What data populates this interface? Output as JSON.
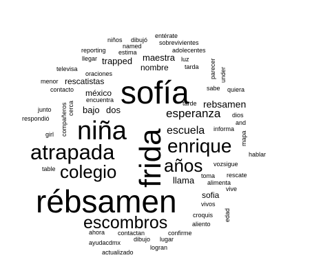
{
  "word_cloud": {
    "words": [
      {
        "text": "sofía",
        "weight": 48
      },
      {
        "text": "frida",
        "weight": 44
      },
      {
        "text": "rébsamen",
        "weight": 46
      },
      {
        "text": "niña",
        "weight": 38
      },
      {
        "text": "atrapada",
        "weight": 31
      },
      {
        "text": "enrique",
        "weight": 28
      },
      {
        "text": "colegio",
        "weight": 26
      },
      {
        "text": "años",
        "weight": 26
      },
      {
        "text": "escombros",
        "weight": 25
      },
      {
        "text": "esperanza",
        "weight": 17
      },
      {
        "text": "escuela",
        "weight": 16
      },
      {
        "text": "rebsamen",
        "weight": 14
      },
      {
        "text": "maestra",
        "weight": 13
      },
      {
        "text": "trapped",
        "weight": 13
      },
      {
        "text": "nombre",
        "weight": 12
      },
      {
        "text": "rescatistas",
        "weight": 12
      },
      {
        "text": "méxico",
        "weight": 12
      },
      {
        "text": "bajo",
        "weight": 13
      },
      {
        "text": "dos",
        "weight": 13
      },
      {
        "text": "llama",
        "weight": 13
      },
      {
        "text": "sofia",
        "weight": 12
      },
      {
        "text": "niños",
        "weight": 9
      },
      {
        "text": "dibujó",
        "weight": 9
      },
      {
        "text": "entérate",
        "weight": 9
      },
      {
        "text": "sobrevivientes",
        "weight": 9
      },
      {
        "text": "named",
        "weight": 9
      },
      {
        "text": "reporting",
        "weight": 9
      },
      {
        "text": "estima",
        "weight": 9
      },
      {
        "text": "adolecentes",
        "weight": 9
      },
      {
        "text": "llegar",
        "weight": 9
      },
      {
        "text": "luz",
        "weight": 9
      },
      {
        "text": "televisa",
        "weight": 9
      },
      {
        "text": "parecer",
        "weight": 9
      },
      {
        "text": "tarda",
        "weight": 9
      },
      {
        "text": "under",
        "weight": 9
      },
      {
        "text": "oraciones",
        "weight": 9
      },
      {
        "text": "menor",
        "weight": 9
      },
      {
        "text": "sabe",
        "weight": 9
      },
      {
        "text": "quiera",
        "weight": 9
      },
      {
        "text": "contacto",
        "weight": 9
      },
      {
        "text": "encuentra",
        "weight": 9
      },
      {
        "text": "tarde",
        "weight": 9
      },
      {
        "text": "cerca",
        "weight": 9
      },
      {
        "text": "compañeros",
        "weight": 9
      },
      {
        "text": "junto",
        "weight": 9
      },
      {
        "text": "dios",
        "weight": 9
      },
      {
        "text": "respondió",
        "weight": 9
      },
      {
        "text": "and",
        "weight": 9
      },
      {
        "text": "informa",
        "weight": 9
      },
      {
        "text": "girl",
        "weight": 9
      },
      {
        "text": "mapa",
        "weight": 9
      },
      {
        "text": "hablar",
        "weight": 9
      },
      {
        "text": "vozsigue",
        "weight": 9
      },
      {
        "text": "table",
        "weight": 9
      },
      {
        "text": "toma",
        "weight": 9
      },
      {
        "text": "rescate",
        "weight": 9
      },
      {
        "text": "alimenta",
        "weight": 9
      },
      {
        "text": "vive",
        "weight": 9
      },
      {
        "text": "vivos",
        "weight": 9
      },
      {
        "text": "edad",
        "weight": 9
      },
      {
        "text": "croquis",
        "weight": 9
      },
      {
        "text": "aliento",
        "weight": 9
      },
      {
        "text": "ahora",
        "weight": 9
      },
      {
        "text": "contactan",
        "weight": 9
      },
      {
        "text": "confirme",
        "weight": 9
      },
      {
        "text": "dibujo",
        "weight": 9
      },
      {
        "text": "lugar",
        "weight": 9
      },
      {
        "text": "ayudacdmx",
        "weight": 9
      },
      {
        "text": "logran",
        "weight": 9
      },
      {
        "text": "actualizado",
        "weight": 9
      }
    ]
  }
}
